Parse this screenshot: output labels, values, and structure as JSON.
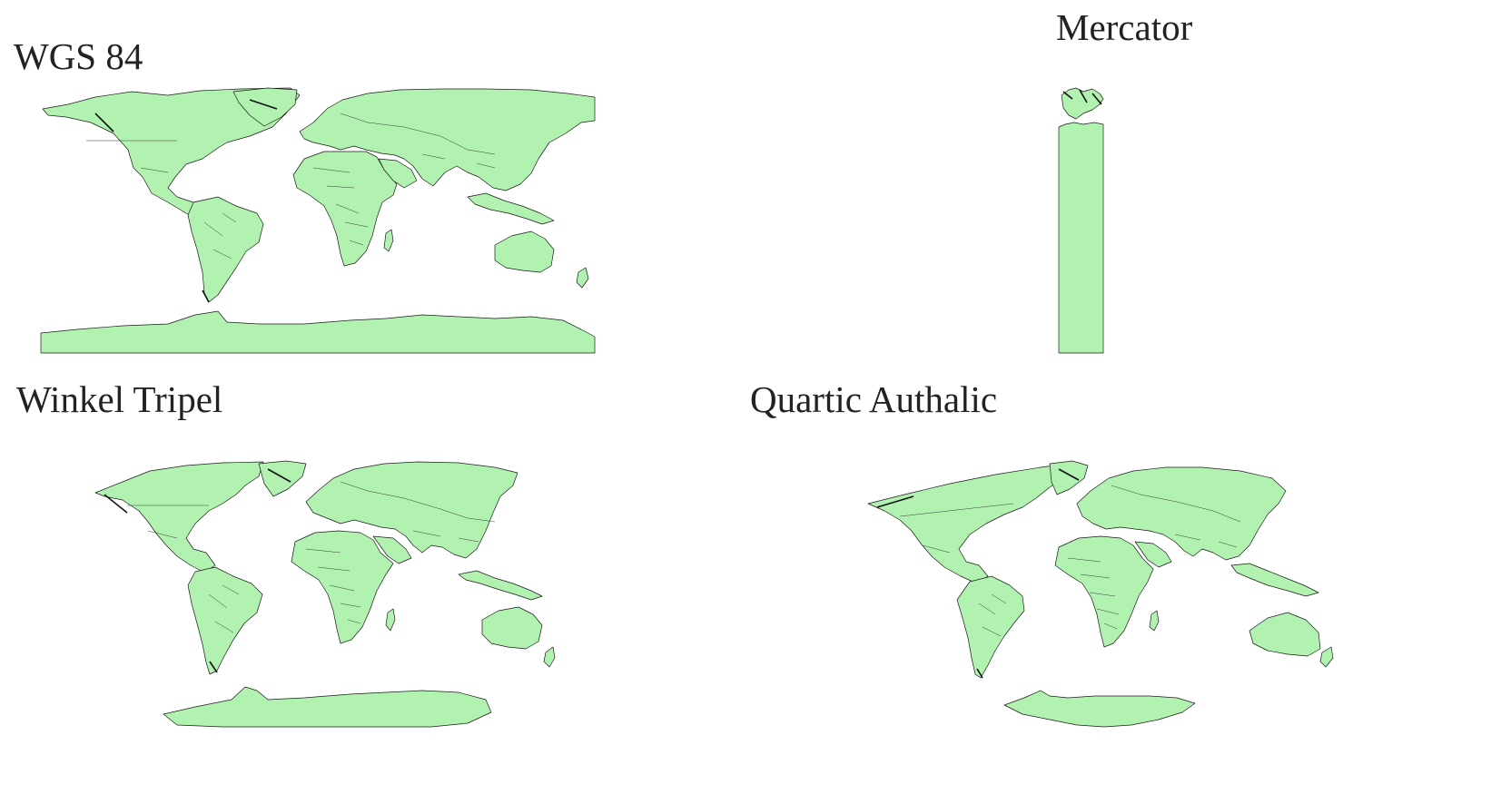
{
  "panels": {
    "wgs84": {
      "title": "WGS 84"
    },
    "mercator": {
      "title": "Mercator"
    },
    "winkel": {
      "title": "Winkel Tripel"
    },
    "quartic": {
      "title": "Quartic Authalic"
    }
  },
  "colors": {
    "land_fill": "#b1f2b1",
    "outline": "#1a1a1a",
    "background": "#ffffff"
  }
}
